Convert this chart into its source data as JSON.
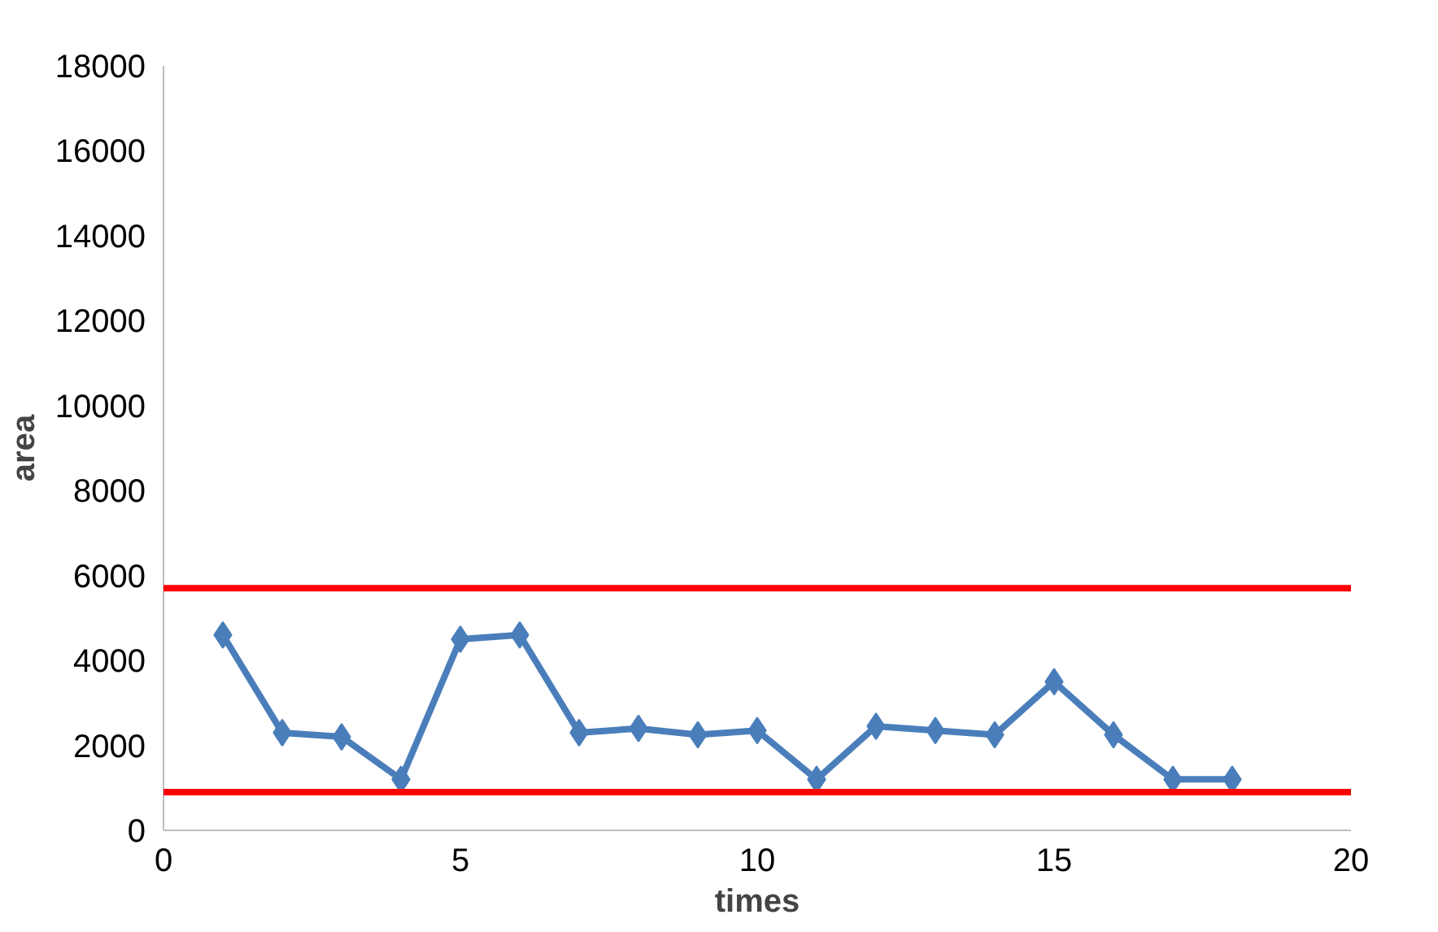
{
  "chart_data": {
    "type": "line",
    "xlabel": "times",
    "ylabel": "area",
    "x": [
      1,
      2,
      3,
      4,
      5,
      6,
      7,
      8,
      9,
      10,
      11,
      12,
      13,
      14,
      15,
      16,
      17,
      18
    ],
    "series": [
      {
        "color": "#4a7ebb",
        "values": [
          4600,
          2300,
          2200,
          1200,
          4500,
          4600,
          2300,
          2400,
          2250,
          2350,
          1200,
          2450,
          2350,
          2250,
          3500,
          2250,
          1200,
          1200
        ]
      }
    ],
    "xlim": [
      0,
      20
    ],
    "xticks": [
      0,
      5,
      10,
      15,
      20
    ],
    "ylim": [
      0,
      18000
    ],
    "yticks": [
      0,
      2000,
      4000,
      6000,
      8000,
      10000,
      12000,
      14000,
      16000,
      18000
    ],
    "marker": "diamond",
    "line_style": "solid",
    "ref_lines": [
      {
        "axis": "y",
        "value": 5700,
        "color": "#ff0000"
      },
      {
        "axis": "y",
        "value": 900,
        "color": "#ff0000"
      }
    ]
  }
}
